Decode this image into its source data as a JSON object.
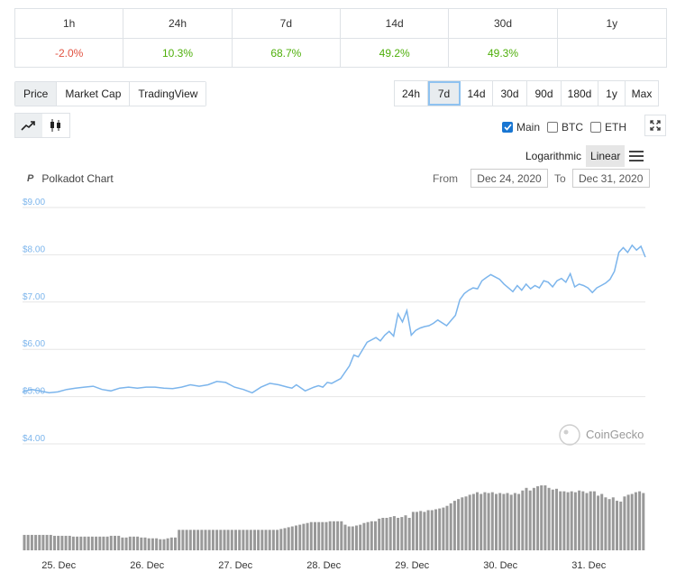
{
  "performance": {
    "headers": [
      "1h",
      "24h",
      "7d",
      "14d",
      "30d",
      "1y"
    ],
    "values": [
      "-2.0%",
      "10.3%",
      "68.7%",
      "49.2%",
      "49.3%",
      ""
    ],
    "value_status": [
      "negative",
      "positive",
      "positive",
      "positive",
      "positive",
      "none"
    ]
  },
  "tabs": [
    "Price",
    "Market Cap",
    "TradingView"
  ],
  "active_tab": "Price",
  "ranges": [
    "24h",
    "7d",
    "14d",
    "30d",
    "90d",
    "180d",
    "1y",
    "Max"
  ],
  "active_range": "7d",
  "chart_types": {
    "active": "line-chart-icon",
    "icons": [
      "line-chart-icon",
      "candlestick-icon"
    ]
  },
  "compare": {
    "main": {
      "label": "Main",
      "checked": true
    },
    "btc": {
      "label": "BTC",
      "checked": false
    },
    "eth": {
      "label": "ETH",
      "checked": false
    }
  },
  "scale": {
    "logarithmic": "Logarithmic",
    "linear": "Linear",
    "active": "Linear"
  },
  "title": {
    "logo": "P",
    "text": "Polkadot Chart"
  },
  "date_range": {
    "from_label": "From",
    "from": "Dec 24, 2020",
    "to_label": "To",
    "to": "Dec 31, 2020"
  },
  "watermark": "CoinGecko",
  "colors": {
    "line": "#7cb5ec",
    "volume": "#999999",
    "positive": "#4eaf0a",
    "negative": "#e15241",
    "accent": "#1976d2"
  },
  "chart_data": {
    "type": "line",
    "title": "Polkadot Chart",
    "y_ticks": [
      "$9.00",
      "$8.00",
      "$7.00",
      "$6.00",
      "$5.00",
      "$4.00"
    ],
    "ylim": [
      4,
      9
    ],
    "x_ticks": [
      "25. Dec",
      "26. Dec",
      "27. Dec",
      "28. Dec",
      "29. Dec",
      "30. Dec",
      "31. Dec"
    ],
    "x_tick_positions": [
      1,
      2,
      3,
      4,
      5,
      6,
      7
    ],
    "xlim": [
      0.6,
      7.65
    ],
    "series": [
      {
        "type": "line",
        "x": [
          0.6,
          0.7,
          0.8,
          0.9,
          1.0,
          1.1,
          1.2,
          1.3,
          1.4,
          1.5,
          1.6,
          1.7,
          1.8,
          1.9,
          2.0,
          2.1,
          2.2,
          2.3,
          2.4,
          2.5,
          2.6,
          2.7,
          2.8,
          2.9,
          3.0,
          3.1,
          3.2,
          3.3,
          3.4,
          3.5,
          3.6,
          3.65,
          3.7,
          3.8,
          3.9,
          3.95,
          4.0,
          4.05,
          4.1,
          4.2,
          4.3,
          4.35,
          4.4,
          4.5,
          4.6,
          4.65,
          4.7,
          4.75,
          4.8,
          4.85,
          4.9,
          4.95,
          5.0,
          5.05,
          5.1,
          5.15,
          5.2,
          5.25,
          5.3,
          5.4,
          5.5,
          5.55,
          5.6,
          5.65,
          5.7,
          5.75,
          5.8,
          5.85,
          5.9,
          6.0,
          6.05,
          6.1,
          6.15,
          6.2,
          6.25,
          6.3,
          6.35,
          6.4,
          6.45,
          6.5,
          6.55,
          6.6,
          6.65,
          6.7,
          6.75,
          6.8,
          6.85,
          6.9,
          6.95,
          7.0,
          7.05,
          7.1,
          7.15,
          7.2,
          7.25,
          7.3,
          7.35,
          7.4,
          7.45,
          7.5,
          7.55,
          7.6,
          7.65
        ],
        "y": [
          5.1,
          5.15,
          5.12,
          5.08,
          5.1,
          5.15,
          5.18,
          5.2,
          5.22,
          5.15,
          5.12,
          5.18,
          5.2,
          5.18,
          5.2,
          5.2,
          5.18,
          5.17,
          5.2,
          5.25,
          5.22,
          5.25,
          5.32,
          5.3,
          5.2,
          5.15,
          5.08,
          5.2,
          5.28,
          5.25,
          5.2,
          5.18,
          5.25,
          5.12,
          5.2,
          5.23,
          5.2,
          5.3,
          5.28,
          5.38,
          5.65,
          5.88,
          5.84,
          6.15,
          6.25,
          6.18,
          6.3,
          6.38,
          6.28,
          6.75,
          6.58,
          6.82,
          6.3,
          6.4,
          6.45,
          6.48,
          6.5,
          6.55,
          6.62,
          6.5,
          6.72,
          7.05,
          7.18,
          7.25,
          7.3,
          7.28,
          7.45,
          7.52,
          7.58,
          7.48,
          7.38,
          7.3,
          7.22,
          7.35,
          7.25,
          7.38,
          7.28,
          7.35,
          7.3,
          7.45,
          7.42,
          7.32,
          7.45,
          7.5,
          7.42,
          7.6,
          7.32,
          7.38,
          7.35,
          7.3,
          7.2,
          7.3,
          7.35,
          7.4,
          7.48,
          7.65,
          8.05,
          8.15,
          8.05,
          8.2,
          8.1,
          8.18,
          7.95
        ]
      }
    ],
    "volume": {
      "x_start": 0.6,
      "x_step": 0.05,
      "values": [
        0.18,
        0.18,
        0.18,
        0.18,
        0.18,
        0.18,
        0.18,
        0.18,
        0.17,
        0.17,
        0.17,
        0.17,
        0.17,
        0.16,
        0.16,
        0.16,
        0.16,
        0.16,
        0.16,
        0.16,
        0.16,
        0.16,
        0.16,
        0.17,
        0.17,
        0.17,
        0.15,
        0.15,
        0.16,
        0.16,
        0.16,
        0.15,
        0.15,
        0.14,
        0.14,
        0.14,
        0.13,
        0.13,
        0.14,
        0.15,
        0.15,
        0.24,
        0.24,
        0.24,
        0.24,
        0.24,
        0.24,
        0.24,
        0.24,
        0.24,
        0.24,
        0.24,
        0.24,
        0.24,
        0.24,
        0.24,
        0.24,
        0.24,
        0.24,
        0.24,
        0.24,
        0.24,
        0.24,
        0.24,
        0.24,
        0.24,
        0.24,
        0.24,
        0.25,
        0.26,
        0.27,
        0.28,
        0.29,
        0.3,
        0.31,
        0.32,
        0.33,
        0.33,
        0.33,
        0.33,
        0.33,
        0.34,
        0.34,
        0.34,
        0.34,
        0.3,
        0.28,
        0.28,
        0.29,
        0.3,
        0.32,
        0.33,
        0.34,
        0.34,
        0.37,
        0.38,
        0.38,
        0.39,
        0.4,
        0.38,
        0.39,
        0.41,
        0.38,
        0.45,
        0.45,
        0.46,
        0.45,
        0.47,
        0.47,
        0.48,
        0.49,
        0.5,
        0.52,
        0.55,
        0.58,
        0.6,
        0.62,
        0.63,
        0.65,
        0.66,
        0.68,
        0.66,
        0.68,
        0.67,
        0.68,
        0.66,
        0.67,
        0.66,
        0.67,
        0.65,
        0.67,
        0.66,
        0.7,
        0.73,
        0.7,
        0.73,
        0.75,
        0.76,
        0.76,
        0.73,
        0.71,
        0.72,
        0.69,
        0.69,
        0.68,
        0.69,
        0.68,
        0.7,
        0.69,
        0.67,
        0.69,
        0.69,
        0.64,
        0.66,
        0.62,
        0.6,
        0.62,
        0.58,
        0.57,
        0.63,
        0.65,
        0.66,
        0.68,
        0.69,
        0.67
      ]
    }
  }
}
